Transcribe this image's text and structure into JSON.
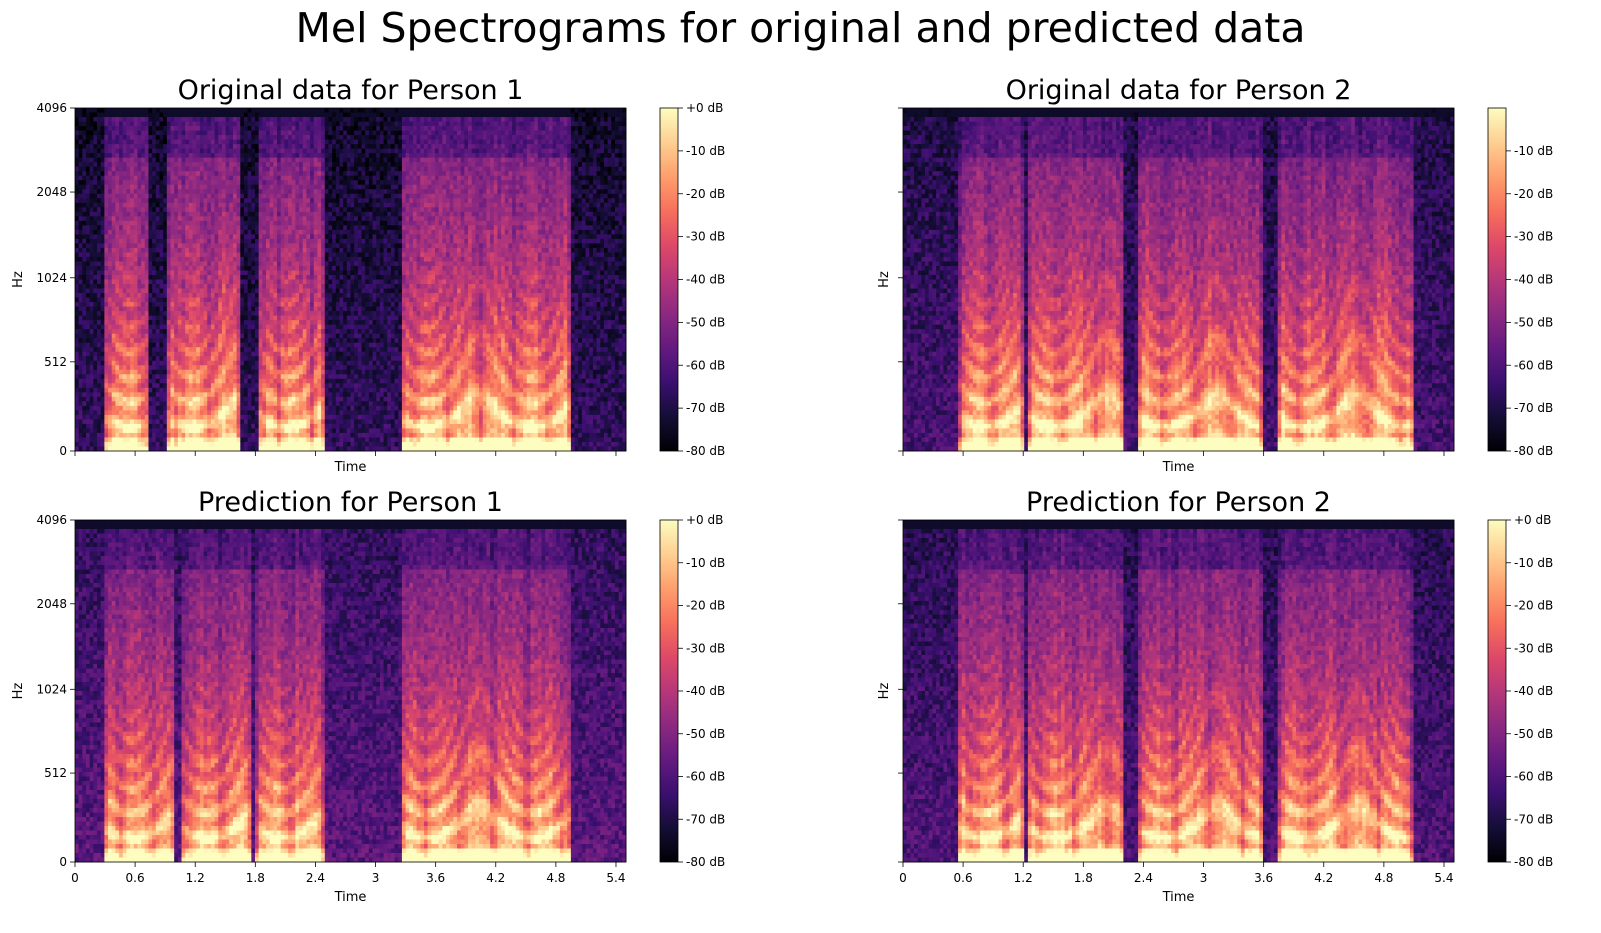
{
  "figure_title": "Mel Spectrograms for original and predicted data",
  "colormap": {
    "name": "magma",
    "stops": [
      "#000004",
      "#140e36",
      "#3b0f70",
      "#641a80",
      "#8c2981",
      "#b73779",
      "#de4968",
      "#f7705c",
      "#fe9f6d",
      "#fecf92",
      "#fcfdbf"
    ]
  },
  "chart_data": [
    {
      "type": "heatmap",
      "title": "Original data for Person 1",
      "xlabel": "Time",
      "ylabel": "Hz",
      "xlim": [
        0,
        5.5
      ],
      "ytick_labels": [
        "0",
        "512",
        "1024",
        "2048",
        "4096"
      ],
      "show_xtick_labels": false,
      "show_ytick_labels": true,
      "colorbar": {
        "range": [
          -80,
          0
        ],
        "tick_labels": [
          "+0 dB",
          "-10 dB",
          "-20 dB",
          "-30 dB",
          "-40 dB",
          "-50 dB",
          "-60 dB",
          "-70 dB",
          "-80 dB"
        ]
      },
      "segments": [
        [
          0.3,
          0.75
        ],
        [
          0.9,
          1.65
        ],
        [
          1.85,
          2.5
        ],
        [
          3.25,
          4.95
        ]
      ],
      "floor_db": -66
    },
    {
      "type": "heatmap",
      "title": "Original data for Person 2",
      "xlabel": "Time",
      "ylabel": "Hz",
      "xlim": [
        0,
        5.5
      ],
      "ytick_labels": [
        "0",
        "512",
        "1024",
        "2048",
        "4096"
      ],
      "show_xtick_labels": false,
      "show_ytick_labels": false,
      "colorbar": {
        "range": [
          -80,
          0
        ],
        "tick_labels": [
          "-10 dB",
          "-20 dB",
          "-30 dB",
          "-40 dB",
          "-50 dB",
          "-60 dB",
          "-70 dB",
          "-80 dB"
        ]
      },
      "segments": [
        [
          0.55,
          1.2
        ],
        [
          1.25,
          2.2
        ],
        [
          2.35,
          3.6
        ],
        [
          3.75,
          5.1
        ]
      ],
      "floor_db": -62
    },
    {
      "type": "heatmap",
      "title": "Prediction for Person 1",
      "xlabel": "Time",
      "ylabel": "Hz",
      "xlim": [
        0,
        5.5
      ],
      "xticks": [
        0,
        0.6,
        1.2,
        1.8,
        2.4,
        3,
        3.6,
        4.2,
        4.8,
        5.4
      ],
      "xtick_labels": [
        "0",
        "0.6",
        "1.2",
        "1.8",
        "2.4",
        "3",
        "3.6",
        "4.2",
        "4.8",
        "5.4"
      ],
      "ytick_labels": [
        "0",
        "512",
        "1024",
        "2048",
        "4096"
      ],
      "show_xtick_labels": true,
      "show_ytick_labels": true,
      "colorbar": {
        "range": [
          -80,
          0
        ],
        "tick_labels": [
          "+0 dB",
          "-10 dB",
          "-20 dB",
          "-30 dB",
          "-40 dB",
          "-50 dB",
          "-60 dB",
          "-70 dB",
          "-80 dB"
        ]
      },
      "segments": [
        [
          0.3,
          1.0
        ],
        [
          1.05,
          1.75
        ],
        [
          1.8,
          2.5
        ],
        [
          3.25,
          4.95
        ]
      ],
      "floor_db": -58
    },
    {
      "type": "heatmap",
      "title": "Prediction for Person 2",
      "xlabel": "Time",
      "ylabel": "Hz",
      "xlim": [
        0,
        5.5
      ],
      "xticks": [
        0,
        0.6,
        1.2,
        1.8,
        2.4,
        3,
        3.6,
        4.2,
        4.8,
        5.4
      ],
      "xtick_labels": [
        "0",
        "0.6",
        "1.2",
        "1.8",
        "2.4",
        "3",
        "3.6",
        "4.2",
        "4.8",
        "5.4"
      ],
      "ytick_labels": [
        "0",
        "512",
        "1024",
        "2048",
        "4096"
      ],
      "show_xtick_labels": true,
      "show_ytick_labels": false,
      "colorbar": {
        "range": [
          -80,
          0
        ],
        "tick_labels": [
          "+0 dB",
          "-10 dB",
          "-20 dB",
          "-30 dB",
          "-40 dB",
          "-50 dB",
          "-60 dB",
          "-70 dB",
          "-80 dB"
        ]
      },
      "segments": [
        [
          0.55,
          1.2
        ],
        [
          1.25,
          2.2
        ],
        [
          2.35,
          3.6
        ],
        [
          3.75,
          5.1
        ]
      ],
      "floor_db": -60
    }
  ]
}
